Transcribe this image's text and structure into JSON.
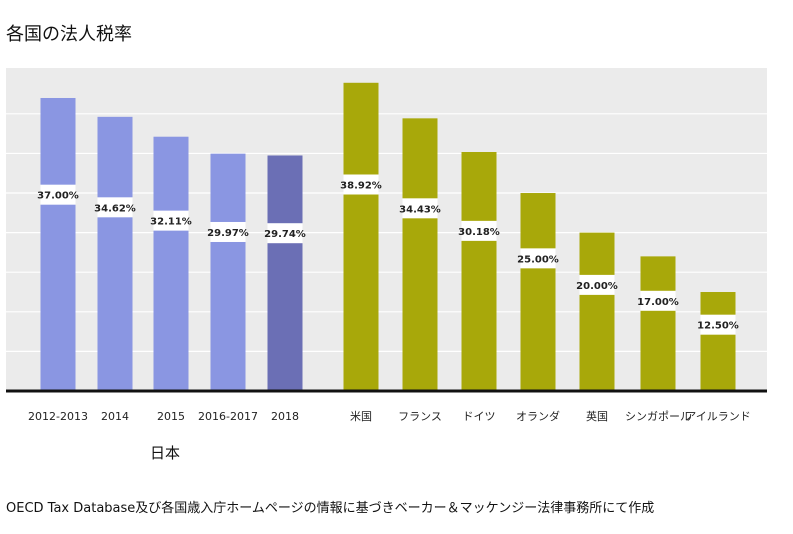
{
  "title": "各国の法人税率",
  "group_label": "日本",
  "source": "OECD Tax Database及び各国歳入庁ホームページの情報に基づきベーカー＆マッケンジー法律事務所にて作成",
  "colors": {
    "plot_background": "#ebebeb",
    "gridline": "#ffffff",
    "axis_line": "#111111",
    "japan_bar": "#8a96e2",
    "japan_bar_highlight": "#6b6fb5",
    "other_bar": "#a8a80a",
    "label_box": "#ffffff"
  },
  "chart_data": {
    "type": "bar",
    "title": "各国の法人税率",
    "xlabel": "",
    "ylabel": "",
    "ylim": [
      0,
      40
    ],
    "grid": true,
    "categories": [
      "2012-2013",
      "2014",
      "2015",
      "2016-2017",
      "2018",
      "米国",
      "フランス",
      "ドイツ",
      "オランダ",
      "英国",
      "シンガポール",
      "アイルランド"
    ],
    "values": [
      37.0,
      34.62,
      32.11,
      29.97,
      29.74,
      38.92,
      34.43,
      30.18,
      25.0,
      20.0,
      17.0,
      12.5
    ],
    "value_labels": [
      "37.00%",
      "34.62%",
      "32.11%",
      "29.97%",
      "29.74%",
      "38.92%",
      "34.43%",
      "30.18%",
      "25.00%",
      "20.00%",
      "17.00%",
      "12.50%"
    ],
    "groups": [
      "japan",
      "japan",
      "japan",
      "japan",
      "japan_highlight",
      "other",
      "other",
      "other",
      "other",
      "other",
      "other",
      "other"
    ]
  }
}
